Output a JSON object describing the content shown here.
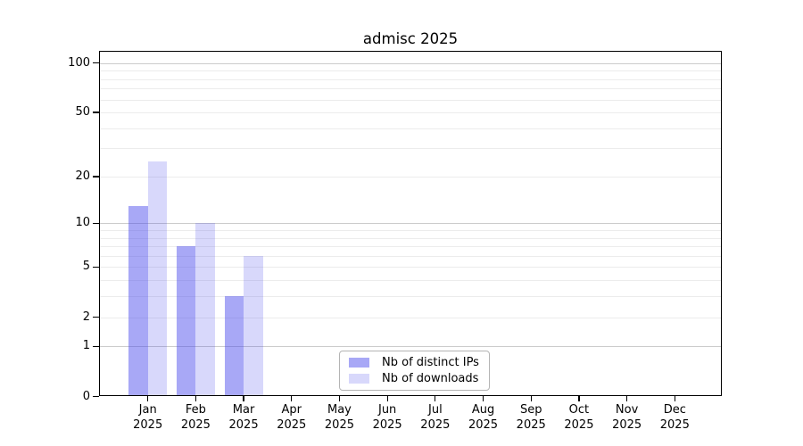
{
  "title": "admisc 2025",
  "chart_data": {
    "type": "bar",
    "title": "admisc 2025",
    "year_label": "2025",
    "categories": [
      "Jan",
      "Feb",
      "Mar",
      "Apr",
      "May",
      "Jun",
      "Jul",
      "Aug",
      "Sep",
      "Oct",
      "Nov",
      "Dec"
    ],
    "series": [
      {
        "name": "Nb of distinct IPs",
        "color": "#a8a8f3",
        "fill": "rgba(70,70,235,0.47)",
        "values": [
          13,
          7,
          3,
          0,
          0,
          0,
          0,
          0,
          0,
          0,
          0,
          0
        ]
      },
      {
        "name": "Nb of downloads",
        "color": "#d9d9f8",
        "fill": "rgba(70,70,235,0.21)",
        "values": [
          25,
          10,
          6,
          0,
          0,
          0,
          0,
          0,
          0,
          0,
          0,
          0
        ]
      }
    ],
    "yscale": "log1p",
    "ylim": [
      0,
      117
    ],
    "xlabel": "",
    "ylabel": "",
    "y_tick_labels": [
      "0",
      "1",
      "2",
      "5",
      "10",
      "20",
      "50",
      "100"
    ],
    "gridlines": {
      "major": [
        1,
        10,
        100
      ],
      "minor": [
        2,
        3,
        4,
        5,
        6,
        7,
        8,
        9,
        20,
        30,
        40,
        50,
        60,
        70,
        80,
        90
      ]
    },
    "legend": {
      "position": "lower center",
      "entries": [
        "Nb of distinct IPs",
        "Nb of downloads"
      ]
    }
  },
  "style": {
    "background": "#ffffff",
    "spine": "#000000",
    "grid_major": "#cccccc",
    "grid_minor": "#ececec",
    "text": "#000000",
    "legend_border": "#b4b4b4"
  }
}
